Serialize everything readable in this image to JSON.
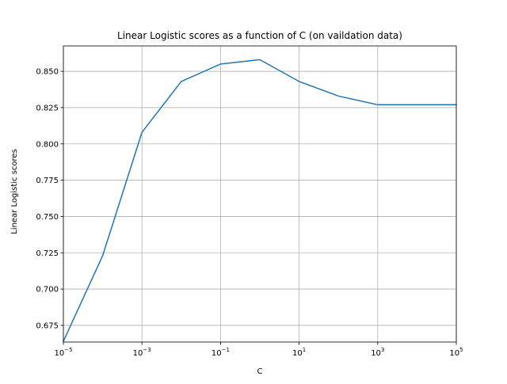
{
  "chart_data": {
    "type": "line",
    "title": "Linear Logistic scores as a function of C (on vaildation data)",
    "xlabel": "C",
    "ylabel": "Linear Logistic scores",
    "xscale": "log",
    "xlim": [
      1e-05,
      100000
    ],
    "ylim": [
      0.6635,
      0.8675
    ],
    "grid": true,
    "line_color": "#1f77b4",
    "x_ticks": [
      {
        "value": 1e-05,
        "base": "10",
        "exp": "−5"
      },
      {
        "value": 0.001,
        "base": "10",
        "exp": "−3"
      },
      {
        "value": 0.1,
        "base": "10",
        "exp": "−1"
      },
      {
        "value": 10,
        "base": "10",
        "exp": "1"
      },
      {
        "value": 1000,
        "base": "10",
        "exp": "3"
      },
      {
        "value": 100000,
        "base": "10",
        "exp": "5"
      }
    ],
    "y_ticks": [
      {
        "value": 0.675,
        "label": "0.675"
      },
      {
        "value": 0.7,
        "label": "0.700"
      },
      {
        "value": 0.725,
        "label": "0.725"
      },
      {
        "value": 0.75,
        "label": "0.750"
      },
      {
        "value": 0.775,
        "label": "0.775"
      },
      {
        "value": 0.8,
        "label": "0.800"
      },
      {
        "value": 0.825,
        "label": "0.825"
      },
      {
        "value": 0.85,
        "label": "0.850"
      }
    ],
    "series": [
      {
        "x": [
          1e-05,
          0.0001,
          0.001,
          0.01,
          0.1,
          1,
          10,
          100,
          1000,
          10000,
          100000
        ],
        "values": [
          0.664,
          0.723,
          0.808,
          0.843,
          0.855,
          0.858,
          0.843,
          0.833,
          0.827,
          0.827,
          0.827
        ]
      }
    ]
  }
}
